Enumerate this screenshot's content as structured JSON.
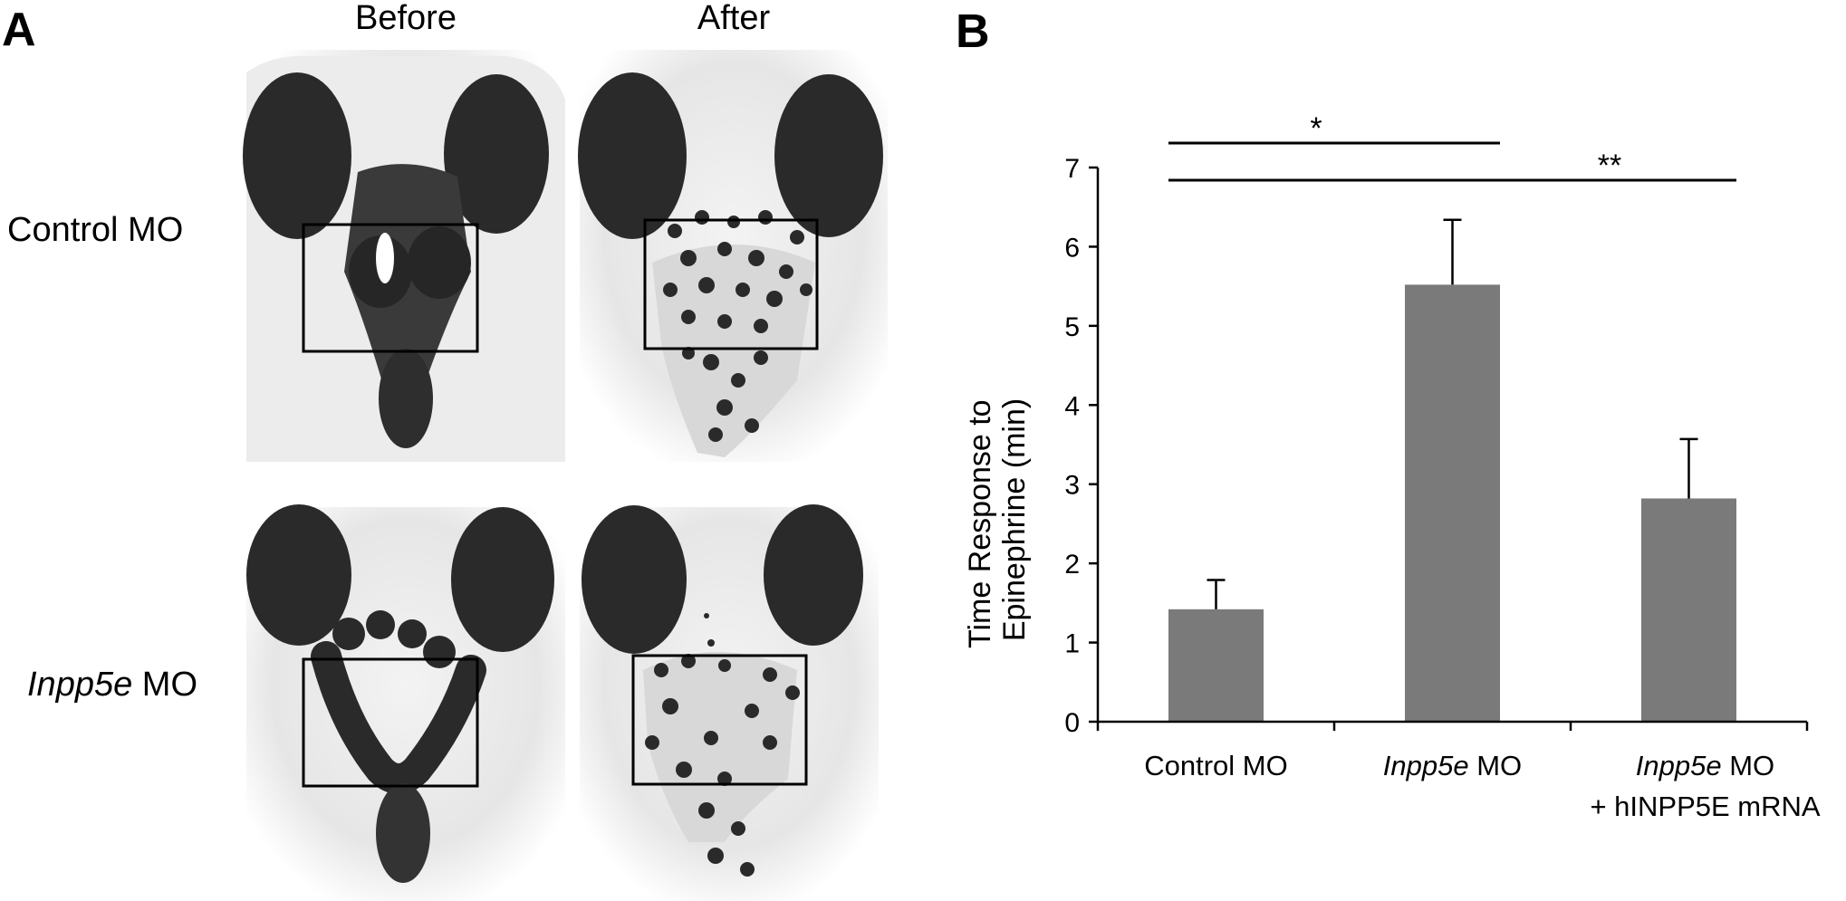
{
  "panel_a": {
    "letter": "A",
    "columns": [
      "Before",
      "After"
    ],
    "rows": [
      {
        "prefix": "Control MO",
        "suffix": ""
      },
      {
        "prefix": "Inpp5e",
        "suffix": " MO"
      }
    ]
  },
  "panel_b": {
    "letter": "B"
  },
  "chart_data": {
    "type": "bar",
    "categories": [
      {
        "line1_italic": "",
        "line1": "Control MO",
        "line2": ""
      },
      {
        "line1_italic": "Inpp5e",
        "line1": " MO",
        "line2": ""
      },
      {
        "line1_italic": "Inpp5e",
        "line1": " MO",
        "line2": "+ hINPP5E mRNA"
      }
    ],
    "values": [
      1.42,
      5.52,
      2.82
    ],
    "errors": [
      0.37,
      0.82,
      0.75
    ],
    "ylabel_line1": "Time Response to",
    "ylabel_line2": "Epinephrine (min)",
    "ylim": [
      0,
      7
    ],
    "yticks": [
      "0",
      "1",
      "2",
      "3",
      "4",
      "5",
      "6",
      "7"
    ],
    "bar_color": "#7a7a7a",
    "significance": [
      {
        "from": 0,
        "to": 1,
        "label": "*"
      },
      {
        "from": 0,
        "to": 2,
        "label": "**"
      }
    ]
  }
}
